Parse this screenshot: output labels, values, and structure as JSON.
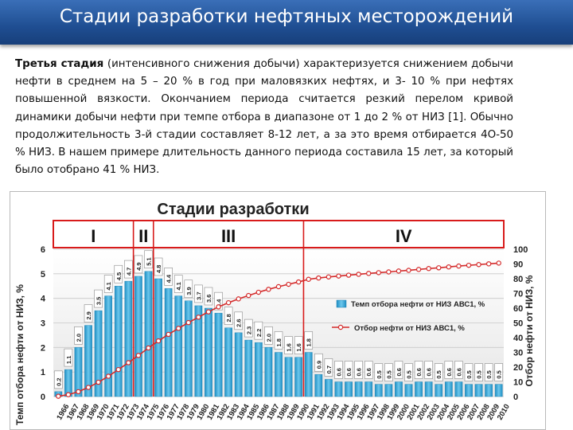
{
  "slide": {
    "title": "Стадии разработки нефтяных месторождений",
    "paragraph_bold": "Третья стадия",
    "paragraph_rest": " (интенсивного снижения добычи) характеризуется снижением добычи нефти в среднем на 5 – 20 % в год при маловязких нефтях, и 3- 10 % при нефтях повышенной вязкости. Окончанием периода считается резкий перелом кривой динамики добычи нефти при темпе отбора в диапазоне от 1 до 2 % от НИЗ [1]. Обычно продолжительность 3-й стадии составляет 8-12 лет, а за это время отбирается 4О-50 % НИЗ. В нашем примере длительность данного периода составила 15 лет, за который было отобрано 41 % НИЗ."
  },
  "chart_data": {
    "type": "bar",
    "title": "Стадии разработки",
    "stages": [
      "I",
      "II",
      "III",
      "IV"
    ],
    "ylabel_left": "Темп отбора нефти от НИЗ, %",
    "ylabel_right": "Отбор нефти от НИЗ, %",
    "ylim_left": [
      0,
      6
    ],
    "yticks_left": [
      "0",
      "1",
      "2",
      "3",
      "4",
      "5",
      "6"
    ],
    "ylim_right": [
      0,
      100
    ],
    "yticks_right": [
      "0",
      "10",
      "20",
      "30",
      "40",
      "50",
      "60",
      "70",
      "80",
      "90",
      "100"
    ],
    "categories": [
      "1966",
      "1967",
      "1968",
      "1969",
      "1970",
      "1971",
      "1972",
      "1973",
      "1974",
      "1975",
      "1976",
      "1977",
      "1978",
      "1979",
      "1980",
      "1981",
      "1982",
      "1983",
      "1984",
      "1985",
      "1986",
      "1987",
      "1988",
      "1989",
      "1990",
      "1991",
      "1992",
      "1993",
      "1994",
      "1995",
      "1996",
      "1997",
      "1998",
      "1999",
      "2000",
      "2001",
      "2002",
      "2003",
      "2004",
      "2005",
      "2006",
      "2007",
      "2008",
      "2009",
      "2010"
    ],
    "series": [
      {
        "name": "Темп отбора нефти от НИЗ АВС1, %",
        "kind": "bar",
        "color": "#39a9d6",
        "values": [
          0.2,
          1.1,
          2.0,
          2.9,
          3.5,
          4.1,
          4.5,
          4.7,
          4.9,
          5.1,
          4.8,
          4.4,
          4.1,
          3.9,
          3.7,
          3.6,
          3.4,
          2.8,
          2.6,
          2.3,
          2.2,
          2.0,
          1.8,
          1.6,
          1.6,
          1.8,
          0.9,
          0.7,
          0.6,
          0.6,
          0.6,
          0.6,
          0.5,
          0.5,
          0.6,
          0.5,
          0.6,
          0.6,
          0.5,
          0.6,
          0.6,
          0.5,
          0.5,
          0.5,
          0.5
        ],
        "labels": [
          "0.2",
          "1.1",
          "2.0",
          "2.9",
          "3.5",
          "4.1",
          "4.5",
          "4.7",
          "4.9",
          "5.1",
          "4.8",
          "4.4",
          "4.1",
          "3.9",
          "3.7",
          "3.6",
          "3.4",
          "2.8",
          "2.6",
          "2.3",
          "2.2",
          "2.0",
          "1.8",
          "1.6",
          "1.6",
          "1.8",
          "0.9",
          "0.7",
          "0.6",
          "0.6",
          "0.6",
          "0.6",
          "0.5",
          "0.5",
          "0.6",
          "0.5",
          "0.6",
          "0.6",
          "0.5",
          "0.6",
          "0.6",
          "0.5",
          "0.5",
          "0.5",
          "0.5"
        ]
      },
      {
        "name": "Отбор нефти от НИЗ АВС1, %",
        "kind": "line",
        "color": "#d42a2a",
        "values": [
          0.2,
          1.3,
          3.3,
          6.2,
          9.7,
          13.8,
          18.3,
          23.0,
          27.9,
          33.0,
          37.8,
          42.2,
          46.3,
          50.2,
          53.9,
          57.5,
          60.9,
          63.7,
          66.3,
          68.6,
          70.8,
          72.8,
          74.6,
          76.2,
          77.8,
          79.6,
          80.5,
          81.2,
          81.8,
          82.4,
          83.0,
          83.6,
          84.1,
          84.6,
          85.2,
          85.7,
          86.3,
          86.9,
          87.4,
          88.0,
          88.6,
          89.1,
          89.6,
          90.1,
          90.6
        ]
      }
    ],
    "legend_position": "right-middle",
    "stage_boundaries_after": [
      "1973",
      "1975",
      "1990"
    ]
  }
}
